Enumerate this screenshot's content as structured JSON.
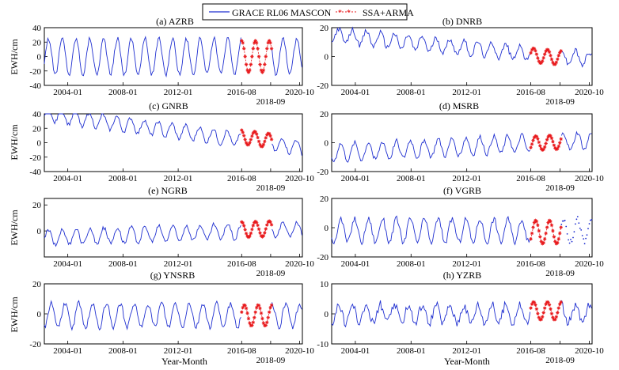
{
  "legend": {
    "entries": [
      {
        "label": "GRACE RL06 MASCON",
        "color": "#1f2fd0",
        "style": "line"
      },
      {
        "label": "SSA+ARMA",
        "color": "#e8191c",
        "style": "asterisk-dash"
      }
    ]
  },
  "x_axis_label": "Year-Month",
  "chart_data": [
    {
      "id": "azrb",
      "title": "(a) AZRB",
      "type": "line",
      "ylabel": "EWH/cm",
      "ylim": [
        -40,
        40
      ],
      "yticks": [
        -40,
        -20,
        0,
        20,
        40
      ],
      "xlim": [
        2002.3,
        2021.0
      ],
      "xticks": [
        "2004-01",
        "2008-01",
        "2012-01",
        "2016-08",
        "2020-10"
      ],
      "xtick_values": [
        2004.0,
        2008.0,
        2012.0,
        2016.6,
        2020.8
      ],
      "extra_tick_label": "2018-09",
      "extra_tick_value": 2018.7,
      "series": [
        {
          "name": "GRACE RL06 MASCON",
          "mean": 0,
          "amp": 25,
          "phase": 0.35,
          "trend": 0,
          "noise": 3,
          "range": [
            2002.3,
            2021.0
          ],
          "gap": [
            2016.6,
            2018.8
          ]
        },
        {
          "name": "SSA+ARMA",
          "mean": 0,
          "amp": 22,
          "phase": 0.35,
          "trend": 0,
          "range": [
            2016.6,
            2018.8
          ]
        }
      ]
    },
    {
      "id": "dnrb",
      "title": "(b) DNRB",
      "type": "line",
      "ylabel": "",
      "ylim": [
        -20,
        20
      ],
      "yticks": [
        -20,
        0,
        20
      ],
      "xlim": [
        2002.3,
        2021.0
      ],
      "xticks": [
        "2004-01",
        "2008-01",
        "2012-01",
        "2016-08",
        "2020-10"
      ],
      "xtick_values": [
        2004.0,
        2008.0,
        2012.0,
        2016.6,
        2020.8
      ],
      "extra_tick_label": "2018-09",
      "extra_tick_value": 2018.7,
      "series": [
        {
          "name": "GRACE RL06 MASCON",
          "mean": 7,
          "amp": 5,
          "phase": 0.55,
          "trend": -0.9,
          "noise": 1.8,
          "range": [
            2002.3,
            2021.0
          ],
          "gap": [
            2016.6,
            2018.8
          ]
        },
        {
          "name": "SSA+ARMA",
          "mean": 6,
          "amp": 5,
          "phase": 0.55,
          "trend": -0.9,
          "range": [
            2016.6,
            2018.8
          ]
        }
      ]
    },
    {
      "id": "gnrb",
      "title": "(c) GNRB",
      "type": "line",
      "ylabel": "EWH/cm",
      "ylim": [
        -40,
        40
      ],
      "yticks": [
        -40,
        -20,
        0,
        20,
        40
      ],
      "xlim": [
        2002.3,
        2021.0
      ],
      "xticks": [
        "2004-01",
        "2008-01",
        "2012-01",
        "2016-08",
        "2020-10"
      ],
      "xtick_values": [
        2004.0,
        2008.0,
        2012.0,
        2016.6,
        2020.8
      ],
      "extra_tick_label": "2018-09",
      "extra_tick_value": 2018.7,
      "series": [
        {
          "name": "GRACE RL06 MASCON",
          "mean": 18,
          "amp": 10,
          "phase": 0.3,
          "trend": -2.5,
          "noise": 2.5,
          "range": [
            2002.3,
            2021.0
          ],
          "gap": [
            2016.6,
            2018.8
          ]
        },
        {
          "name": "SSA+ARMA",
          "mean": 22,
          "amp": 10,
          "phase": 0.3,
          "trend": -2.5,
          "range": [
            2016.6,
            2018.8
          ]
        }
      ]
    },
    {
      "id": "msrb",
      "title": "(d) MSRB",
      "type": "line",
      "ylabel": "",
      "ylim": [
        -20,
        20
      ],
      "yticks": [
        -20,
        0,
        20
      ],
      "xlim": [
        2002.3,
        2021.0
      ],
      "xticks": [
        "2004-01",
        "2008-01",
        "2012-01",
        "2016-08",
        "2020-10"
      ],
      "xtick_values": [
        2004.0,
        2008.0,
        2012.0,
        2016.6,
        2020.8
      ],
      "extra_tick_label": "2018-09",
      "extra_tick_value": 2018.7,
      "series": [
        {
          "name": "GRACE RL06 MASCON",
          "mean": -3,
          "amp": 6,
          "phase": 0.7,
          "trend": 0.45,
          "noise": 1.6,
          "range": [
            2002.3,
            2021.0
          ],
          "gap": [
            2016.6,
            2018.8
          ]
        },
        {
          "name": "SSA+ARMA",
          "mean": -3,
          "amp": 5,
          "phase": 0.7,
          "trend": 0.45,
          "range": [
            2016.6,
            2018.8
          ]
        }
      ]
    },
    {
      "id": "ngrb",
      "title": "(e) NGRB",
      "type": "line",
      "ylabel": "EWH/cm",
      "ylim": [
        -20,
        25
      ],
      "yticks": [
        0,
        20
      ],
      "xlim": [
        2002.3,
        2021.0
      ],
      "xticks": [
        "2004-01",
        "2008-01",
        "2012-01",
        "2016-08",
        "2020-10"
      ],
      "xtick_values": [
        2004.0,
        2008.0,
        2012.0,
        2016.6,
        2020.8
      ],
      "extra_tick_label": "2018-09",
      "extra_tick_value": 2018.7,
      "series": [
        {
          "name": "GRACE RL06 MASCON",
          "mean": -2,
          "amp": 6,
          "phase": 0.35,
          "trend": 0.35,
          "noise": 1.6,
          "range": [
            2002.3,
            2021.0
          ],
          "gap": [
            2016.6,
            2018.8
          ]
        },
        {
          "name": "SSA+ARMA",
          "mean": -1,
          "amp": 6,
          "phase": 0.35,
          "trend": 0.35,
          "range": [
            2016.6,
            2018.8
          ]
        }
      ]
    },
    {
      "id": "vgrb",
      "title": "(f) VGRB",
      "type": "line",
      "ylabel": "",
      "ylim": [
        -20,
        20
      ],
      "yticks": [
        -20,
        0,
        20
      ],
      "xlim": [
        2002.3,
        2021.0
      ],
      "xticks": [
        "2004-01",
        "2008-01",
        "2012-01",
        "2016-08",
        "2020-10"
      ],
      "xtick_values": [
        2004.0,
        2008.0,
        2012.0,
        2016.6,
        2020.8
      ],
      "extra_tick_label": "2018-09",
      "extra_tick_value": 2018.7,
      "series": [
        {
          "name": "GRACE RL06 MASCON",
          "mean": -2,
          "amp": 8,
          "phase": 0.7,
          "trend": 0,
          "noise": 2,
          "range": [
            2002.3,
            2021.0
          ],
          "gap": [
            2016.6,
            2018.8
          ],
          "dotted_after": 2018.8
        },
        {
          "name": "SSA+ARMA",
          "mean": -3,
          "amp": 8,
          "phase": 0.7,
          "trend": 0,
          "range": [
            2016.6,
            2018.8
          ]
        }
      ]
    },
    {
      "id": "ynsrb",
      "title": "(g) YNSRB",
      "type": "line",
      "ylabel": "EWH/cm",
      "ylim": [
        -20,
        20
      ],
      "yticks": [
        -20,
        0,
        20
      ],
      "xlim": [
        2002.3,
        2021.0
      ],
      "xticks": [
        "2004-01",
        "2008-01",
        "2012-01",
        "2016-08",
        "2020-10"
      ],
      "xtick_values": [
        2004.0,
        2008.0,
        2012.0,
        2016.6,
        2020.8
      ],
      "extra_tick_label": "2018-09",
      "extra_tick_value": 2018.7,
      "series": [
        {
          "name": "GRACE RL06 MASCON",
          "mean": -1,
          "amp": 8,
          "phase": 0.55,
          "trend": 0,
          "noise": 1.8,
          "range": [
            2002.3,
            2021.0
          ],
          "gap": [
            2016.6,
            2018.8
          ]
        },
        {
          "name": "SSA+ARMA",
          "mean": -1,
          "amp": 7,
          "phase": 0.55,
          "trend": 0,
          "range": [
            2016.6,
            2018.8
          ]
        }
      ]
    },
    {
      "id": "yzrb",
      "title": "(h) YZRB",
      "type": "line",
      "ylabel": "",
      "ylim": [
        -10,
        10
      ],
      "yticks": [
        -10,
        0,
        10
      ],
      "xlim": [
        2002.3,
        2021.0
      ],
      "xticks": [
        "2004-01",
        "2008-01",
        "2012-01",
        "2016-08",
        "2020-10"
      ],
      "xtick_values": [
        2004.0,
        2008.0,
        2012.0,
        2016.6,
        2020.8
      ],
      "extra_tick_label": "2018-09",
      "extra_tick_value": 2018.7,
      "series": [
        {
          "name": "GRACE RL06 MASCON",
          "mean": 0,
          "amp": 3,
          "phase": 0.55,
          "trend": 0,
          "noise": 1.5,
          "range": [
            2002.3,
            2021.0
          ],
          "gap": [
            2016.6,
            2018.8
          ]
        },
        {
          "name": "SSA+ARMA",
          "mean": 1,
          "amp": 3,
          "phase": 0.55,
          "trend": 0,
          "range": [
            2016.6,
            2018.8
          ]
        }
      ]
    }
  ]
}
